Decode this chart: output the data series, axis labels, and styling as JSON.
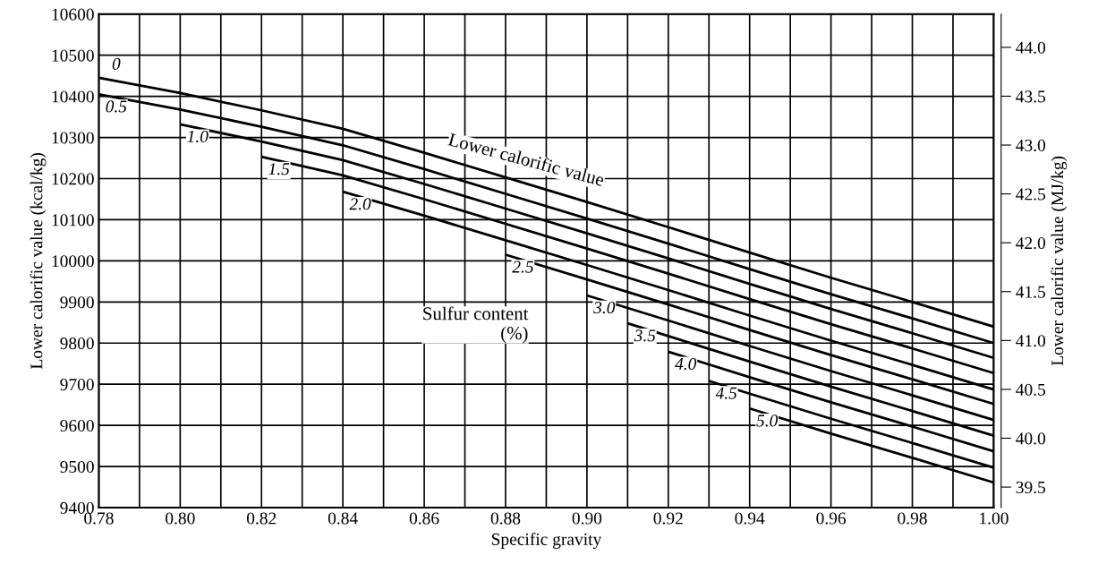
{
  "chart_data": {
    "type": "line",
    "xlabel": "Specific gravity",
    "ylabel": "Lower calorific value (kcal/kg)",
    "y2label": "Lower calorific value (MJ/kg)",
    "xlim": [
      0.78,
      1.0
    ],
    "ylim": [
      9400,
      10600
    ],
    "y2lim": [
      39.29,
      44.34
    ],
    "xticks": [
      {
        "value": 0.78,
        "label": "0.78"
      },
      {
        "value": 0.79,
        "label": null
      },
      {
        "value": 0.8,
        "label": "0.80"
      },
      {
        "value": 0.81,
        "label": null
      },
      {
        "value": 0.82,
        "label": "0.82"
      },
      {
        "value": 0.83,
        "label": null
      },
      {
        "value": 0.84,
        "label": "0.84"
      },
      {
        "value": 0.85,
        "label": null
      },
      {
        "value": 0.86,
        "label": "0.86"
      },
      {
        "value": 0.87,
        "label": null
      },
      {
        "value": 0.88,
        "label": "0.88"
      },
      {
        "value": 0.89,
        "label": null
      },
      {
        "value": 0.9,
        "label": "0.90"
      },
      {
        "value": 0.91,
        "label": null
      },
      {
        "value": 0.92,
        "label": "0.92"
      },
      {
        "value": 0.93,
        "label": null
      },
      {
        "value": 0.94,
        "label": "0.94"
      },
      {
        "value": 0.95,
        "label": null
      },
      {
        "value": 0.96,
        "label": "0.96"
      },
      {
        "value": 0.97,
        "label": null
      },
      {
        "value": 0.98,
        "label": "0.98"
      },
      {
        "value": 0.99,
        "label": null
      },
      {
        "value": 1.0,
        "label": "1.00"
      }
    ],
    "yticks": [
      9400,
      9500,
      9600,
      9700,
      9800,
      9900,
      10000,
      10100,
      10200,
      10300,
      10400,
      10500,
      10600
    ],
    "y2ticks": [
      39.5,
      {
        "value": 40.0,
        "label": "40.0"
      },
      40.5,
      {
        "value": 41.0,
        "label": "41.0"
      },
      41.5,
      {
        "value": 42.0,
        "label": "42.0"
      },
      42.5,
      {
        "value": 43.0,
        "label": "43.0"
      },
      43.5,
      {
        "value": 44.0,
        "label": "44.0"
      }
    ],
    "grid": true,
    "legend": false,
    "marker": "none",
    "line_style": "solid",
    "series": [
      {
        "name": "0",
        "color": "#000000",
        "x": [
          0.78,
          0.8,
          0.82,
          0.84,
          0.86,
          0.88,
          0.9,
          0.92,
          0.94,
          0.96,
          0.98,
          1.0
        ],
        "values": [
          10445,
          10408,
          10366,
          10321,
          10263,
          10203,
          10143,
          10082,
          10020,
          9959,
          9900,
          9840
        ]
      },
      {
        "name": "0.5",
        "color": "#000000",
        "x": [
          0.78,
          0.8,
          0.82,
          0.84,
          0.86,
          0.88,
          0.9,
          0.92,
          0.94,
          0.96,
          0.98,
          1.0
        ],
        "values": [
          10405,
          10368,
          10326,
          10281,
          10223,
          10163,
          10103,
          10042,
          9980,
          9919,
          9860,
          9800
        ]
      },
      {
        "name": "1.0",
        "color": "#000000",
        "x": [
          0.8,
          0.82,
          0.84,
          0.86,
          0.88,
          0.9,
          0.92,
          0.94,
          0.96,
          0.98,
          1.0
        ],
        "values": [
          10332,
          10290,
          10245,
          10187,
          10127,
          10067,
          10006,
          9944,
          9883,
          9824,
          9764
        ]
      },
      {
        "name": "1.5",
        "color": "#000000",
        "x": [
          0.82,
          0.84,
          0.86,
          0.88,
          0.9,
          0.92,
          0.94,
          0.96,
          0.98,
          1.0
        ],
        "values": [
          10253,
          10208,
          10150,
          10090,
          10030,
          9969,
          9907,
          9846,
          9787,
          9727
        ]
      },
      {
        "name": "2.0",
        "color": "#000000",
        "x": [
          0.84,
          0.86,
          0.88,
          0.9,
          0.92,
          0.94,
          0.96,
          0.98,
          1.0
        ],
        "values": [
          10168,
          10110,
          10050,
          9990,
          9929,
          9867,
          9806,
          9747,
          9687
        ]
      },
      {
        "name": "2.5",
        "color": "#000000",
        "x": [
          0.88,
          0.9,
          0.92,
          0.94,
          0.96,
          0.98,
          1.0
        ],
        "values": [
          10015,
          9955,
          9894,
          9832,
          9771,
          9712,
          9652
        ]
      },
      {
        "name": "3.0",
        "color": "#000000",
        "x": [
          0.9,
          0.92,
          0.94,
          0.96,
          0.98,
          1.0
        ],
        "values": [
          9916,
          9855,
          9793,
          9732,
          9673,
          9613
        ]
      },
      {
        "name": "3.5",
        "color": "#000000",
        "x": [
          0.91,
          0.92,
          0.94,
          0.96,
          0.98,
          1.0
        ],
        "values": [
          9848,
          9817,
          9755,
          9694,
          9635,
          9575
        ]
      },
      {
        "name": "4.0",
        "color": "#000000",
        "x": [
          0.92,
          0.94,
          0.96,
          0.98,
          1.0
        ],
        "values": [
          9779,
          9717,
          9656,
          9597,
          9537
        ]
      },
      {
        "name": "4.5",
        "color": "#000000",
        "x": [
          0.93,
          0.94,
          0.96,
          0.98,
          1.0
        ],
        "values": [
          9708,
          9677,
          9616,
          9557,
          9497
        ]
      },
      {
        "name": "5.0",
        "color": "#000000",
        "x": [
          0.94,
          0.96,
          0.98,
          1.0
        ],
        "values": [
          9641,
          9580,
          9521,
          9461
        ]
      }
    ],
    "annotations": [
      {
        "text": "Lower calorific value",
        "x": 0.885,
        "y": 10200
      },
      "Sulfur content\n(%)"
    ]
  }
}
